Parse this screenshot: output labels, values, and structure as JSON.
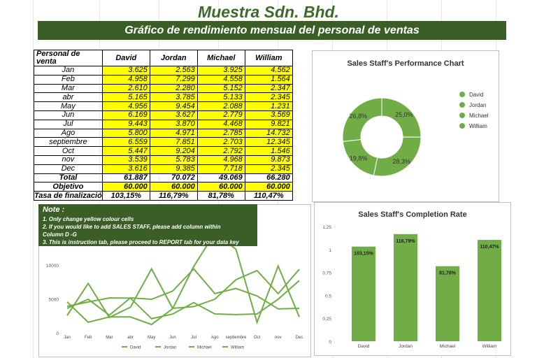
{
  "title": "Muestra Sdn. Bhd.",
  "subtitle": "Gráfico de rendimiento mensual del personal de ventas",
  "table": {
    "header_label": "Personal de venta",
    "staff": [
      "David",
      "Jordan",
      "Michael",
      "William"
    ],
    "rows": [
      {
        "month": "Jan",
        "values": [
          "3.625",
          "2.563",
          "3.925",
          "4.562"
        ]
      },
      {
        "month": "Feb",
        "values": [
          "4.958",
          "7.299",
          "4.558",
          "1.564"
        ]
      },
      {
        "month": "Mar",
        "values": [
          "2.610",
          "2.280",
          "5.152",
          "2.347"
        ]
      },
      {
        "month": "abr",
        "values": [
          "5.165",
          "3.785",
          "5.133",
          "2.345"
        ]
      },
      {
        "month": "May",
        "values": [
          "4.956",
          "9.454",
          "2.088",
          "1.231"
        ]
      },
      {
        "month": "Jun",
        "values": [
          "6.169",
          "3.627",
          "2.779",
          "3.569"
        ]
      },
      {
        "month": "Jul",
        "values": [
          "9.443",
          "3.870",
          "4.468",
          "9.821"
        ]
      },
      {
        "month": "Ago",
        "values": [
          "5.800",
          "4.971",
          "2.785",
          "14.732"
        ]
      },
      {
        "month": "septiembre",
        "values": [
          "6.559",
          "7.851",
          "2.703",
          "12.345"
        ]
      },
      {
        "month": "Oct",
        "values": [
          "5.447",
          "9.204",
          "2.792",
          "1.546"
        ]
      },
      {
        "month": "nov",
        "values": [
          "3.539",
          "5.783",
          "4.968",
          "9.873"
        ]
      },
      {
        "month": "Dec",
        "values": [
          "3.616",
          "9.385",
          "7.718",
          "2.345"
        ]
      }
    ],
    "total_label": "Total",
    "totals": [
      "61.887",
      "70.072",
      "49.069",
      "66.280"
    ],
    "target_label": "Objetivo",
    "targets": [
      "60.000",
      "60.000",
      "60.000",
      "60.000"
    ],
    "rate_label": "Tasa de finalizació",
    "rates": [
      "103,15%",
      "116,79%",
      "81,78%",
      "110,47%"
    ]
  },
  "note": {
    "title": "Note :",
    "lines": [
      "1. Only change yellow colour cells",
      "2. If you would like to add SALES STAFF, please add column within",
      "Column D -G",
      "3. This is instruction tab, please proceed to REPORT tab for your data key"
    ]
  },
  "colors": {
    "accent": "#70ad47",
    "banner": "#3a5f26",
    "highlight": "#ffff00"
  },
  "chart_data": [
    {
      "type": "pie",
      "title": "Sales Staff's Performance Chart",
      "categories": [
        "David",
        "Jordan",
        "Michael",
        "William"
      ],
      "values": [
        25.0,
        28.3,
        19.8,
        26.8
      ],
      "labels": [
        "25,0%",
        "28,3%",
        "19,8%",
        "26,8%"
      ],
      "donut": true,
      "legend": "right"
    },
    {
      "type": "bar",
      "title": "Sales Staff's Completion Rate",
      "categories": [
        "David",
        "Jordan",
        "Michael",
        "William"
      ],
      "values": [
        1.0315,
        1.1679,
        0.8178,
        1.1047
      ],
      "labels": [
        "103,15%",
        "116,79%",
        "81,78%",
        "110,47%"
      ],
      "yticks": [
        "0",
        "0,25",
        "0,5",
        "0,75",
        "1",
        "1,25"
      ],
      "ylim": [
        0,
        1.25
      ]
    },
    {
      "type": "line",
      "x": [
        "Jan",
        "Feb",
        "Mar",
        "abr",
        "May",
        "Jun",
        "Jul",
        "Ago",
        "septiembre",
        "Oct",
        "nov",
        "Dec"
      ],
      "series": [
        {
          "name": "David",
          "values": [
            3625,
            4958,
            2610,
            5165,
            4956,
            6169,
            9443,
            5800,
            6559,
            5447,
            3539,
            3616
          ]
        },
        {
          "name": "Jordan",
          "values": [
            2563,
            7299,
            2280,
            3785,
            9454,
            3627,
            3870,
            4971,
            7851,
            9204,
            5783,
            9385
          ]
        },
        {
          "name": "Michael",
          "values": [
            3925,
            4558,
            5152,
            5133,
            2088,
            2779,
            4468,
            2785,
            2703,
            2792,
            4968,
            7718
          ]
        },
        {
          "name": "William",
          "values": [
            4562,
            1564,
            2347,
            2345,
            1231,
            3569,
            9821,
            14732,
            12345,
            1546,
            9873,
            2345
          ]
        }
      ],
      "yticks": [
        "0",
        "5000",
        "10000"
      ],
      "ylim": [
        0,
        12500
      ],
      "legend": "bottom"
    }
  ]
}
